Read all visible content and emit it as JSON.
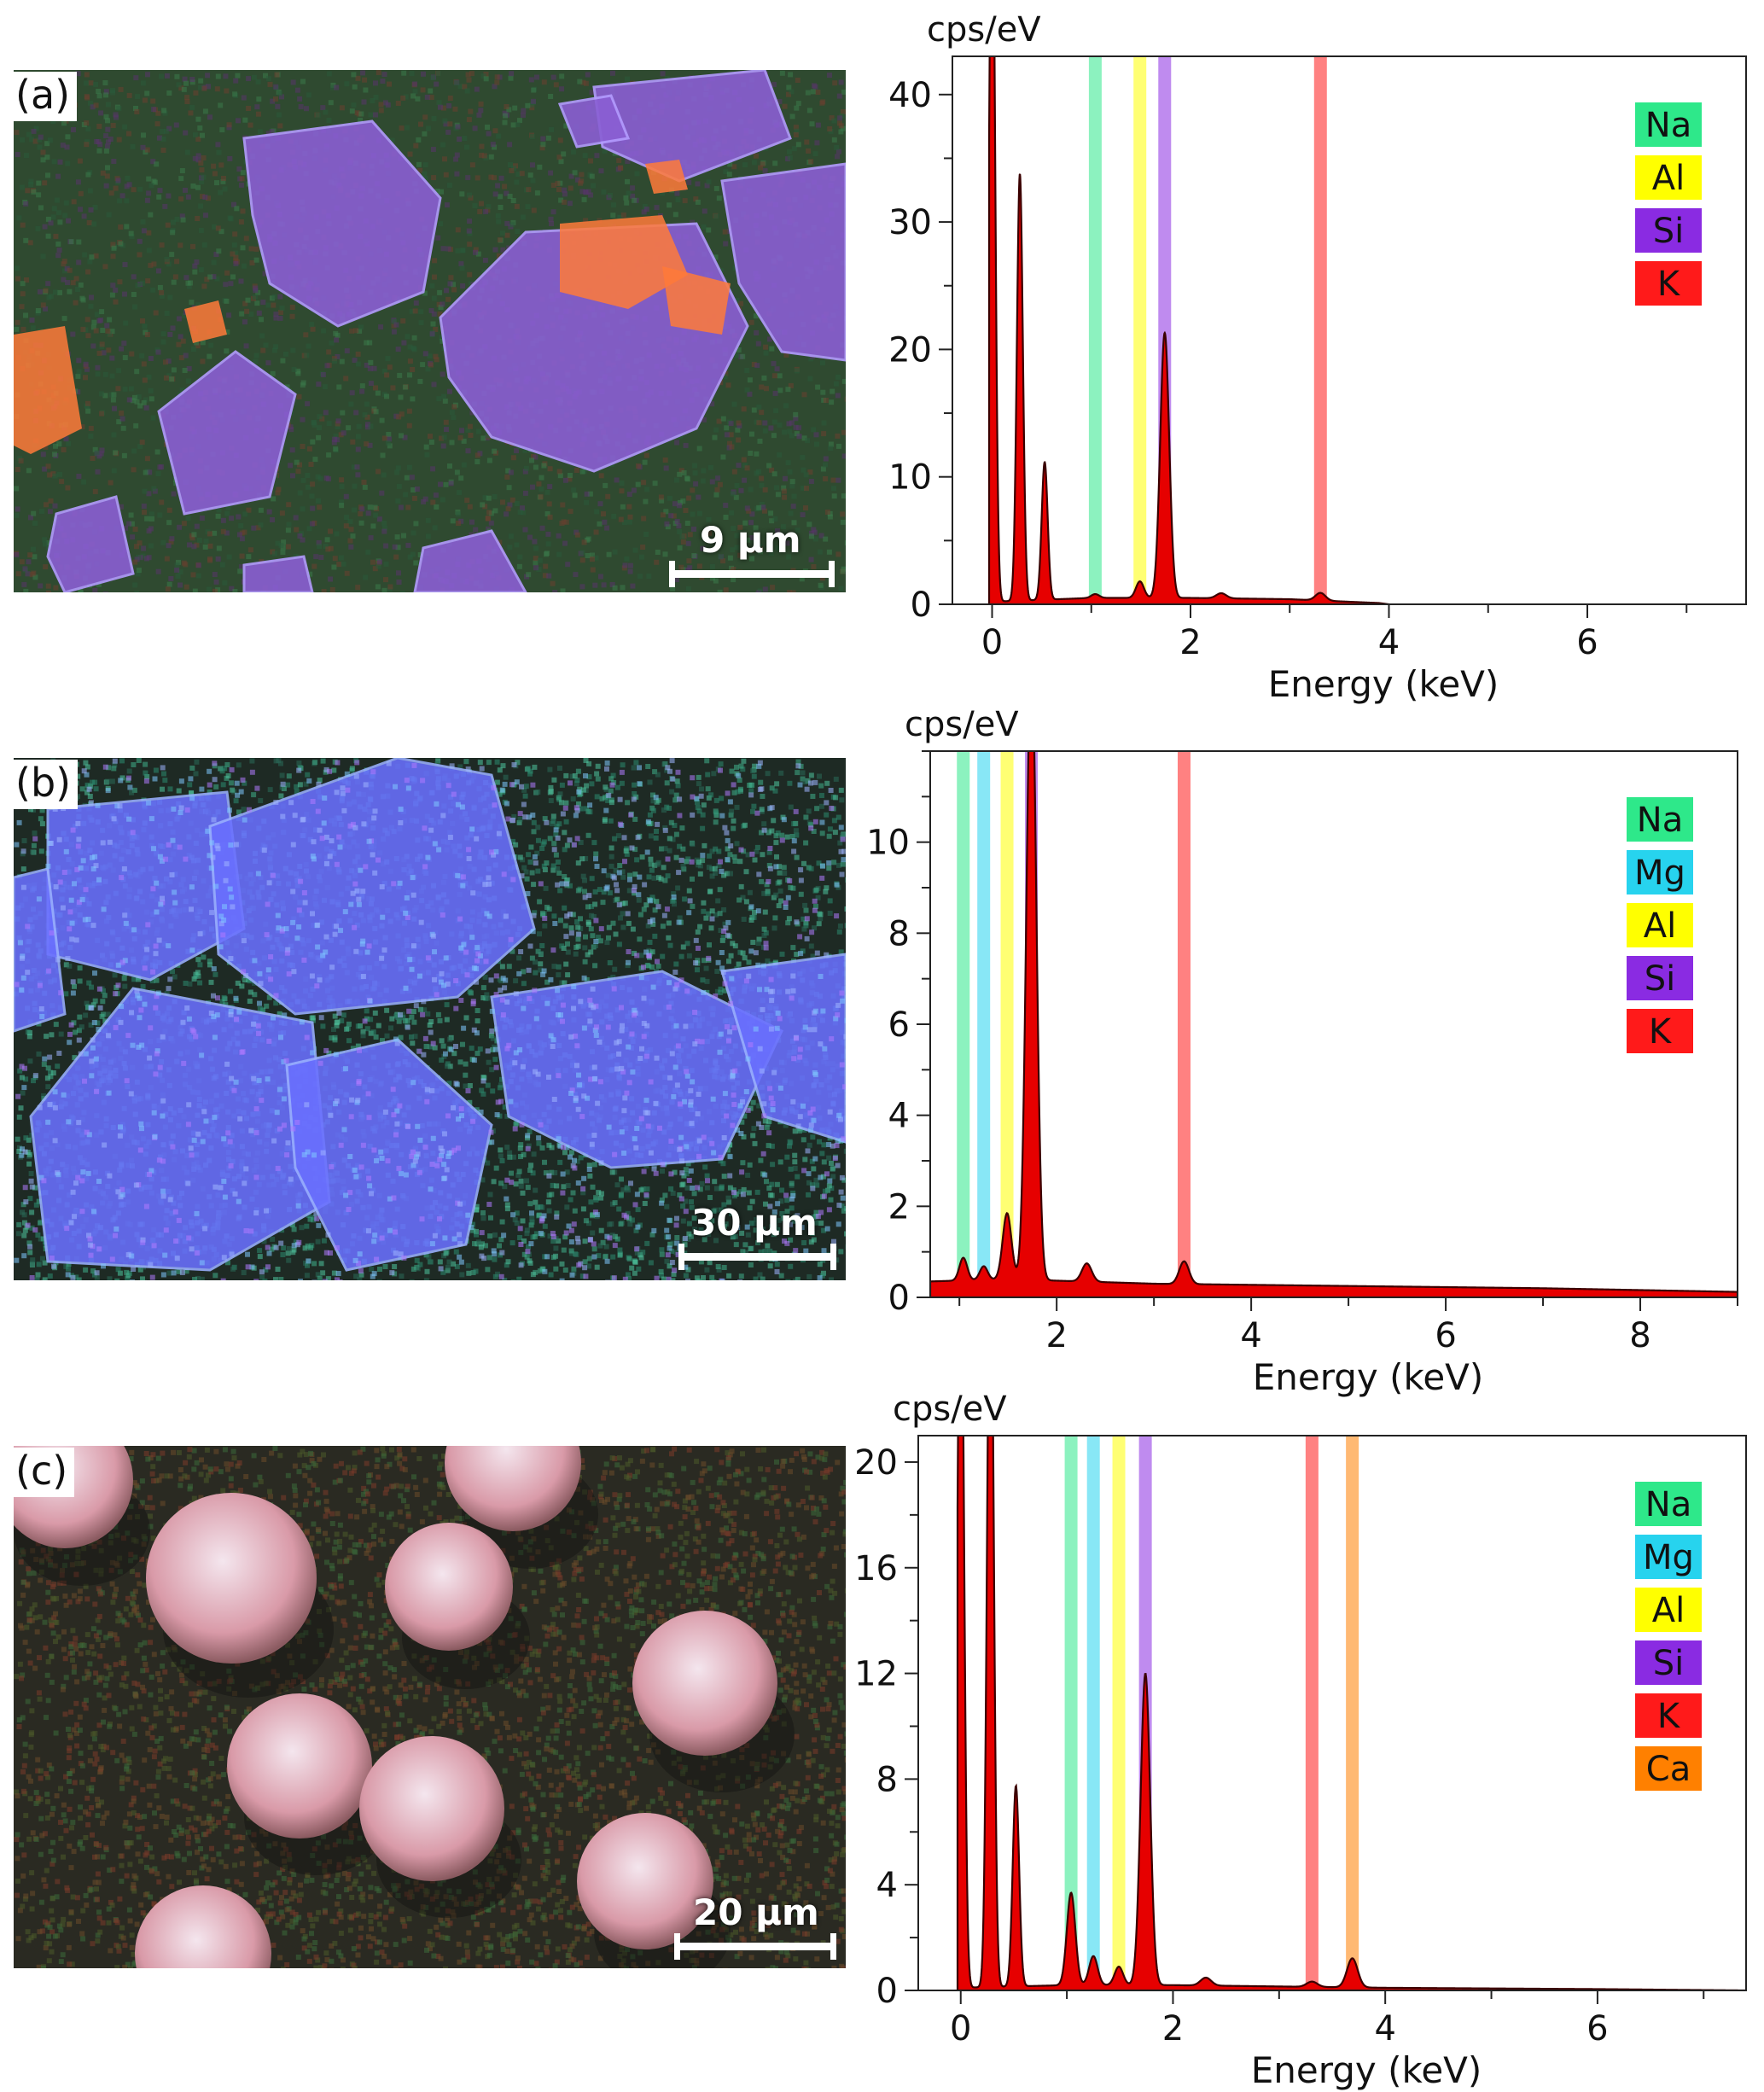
{
  "colors": {
    "Na": "#2ee88a",
    "Mg": "#27d3ee",
    "Al": "#ffff00",
    "Si": "#8a2be2",
    "K": "#ff1a1a",
    "Ca": "#ff8000",
    "spectrum_fill": "#e60000",
    "spectrum_line": "#3a0000"
  },
  "panels": [
    {
      "label": "(a)",
      "scale_bar": "9 µm",
      "image_theme": "irregular-flakes",
      "chart_unit": "cps/eV"
    },
    {
      "label": "(b)",
      "scale_bar": "30 µm",
      "image_theme": "angular-blocks",
      "chart_unit": "cps/eV"
    },
    {
      "label": "(c)",
      "scale_bar": "20 µm",
      "image_theme": "spheres",
      "chart_unit": "cps/eV"
    }
  ],
  "chart_data": [
    {
      "type": "area",
      "title": "",
      "xlabel": "Energy (keV)",
      "ylabel": "cps/eV",
      "xlim": [
        -0.4,
        7.6
      ],
      "ylim": [
        0,
        43
      ],
      "xticks": [
        0,
        2,
        4,
        6
      ],
      "yticks": [
        0,
        10,
        20,
        30,
        40
      ],
      "grid": false,
      "legend_position": "top-right",
      "legend": [
        "Na",
        "Al",
        "Si",
        "K"
      ],
      "element_lines": [
        {
          "element": "Na",
          "energy": 1.04
        },
        {
          "element": "Al",
          "energy": 1.49
        },
        {
          "element": "Si",
          "energy": 1.74
        },
        {
          "element": "K",
          "energy": 3.31
        }
      ],
      "peaks": [
        {
          "x": 0.0,
          "y": 60,
          "w": 0.03
        },
        {
          "x": 0.28,
          "y": 33.5,
          "w": 0.03
        },
        {
          "x": 0.53,
          "y": 10.8,
          "w": 0.03
        },
        {
          "x": 1.04,
          "y": 0.3,
          "w": 0.04
        },
        {
          "x": 1.49,
          "y": 1.3,
          "w": 0.04
        },
        {
          "x": 1.74,
          "y": 20.8,
          "w": 0.045
        },
        {
          "x": 2.31,
          "y": 0.4,
          "w": 0.05
        },
        {
          "x": 3.31,
          "y": 0.6,
          "w": 0.05
        }
      ],
      "baseline": [
        [
          0.0,
          0.2
        ],
        [
          1.0,
          0.5
        ],
        [
          2.0,
          0.5
        ],
        [
          3.0,
          0.4
        ],
        [
          3.9,
          0.1
        ],
        [
          4.0,
          0.0
        ]
      ]
    },
    {
      "type": "area",
      "title": "",
      "xlabel": "Energy (keV)",
      "ylabel": "cps/eV",
      "xlim": [
        0.7,
        9.0
      ],
      "ylim": [
        0,
        12
      ],
      "xticks": [
        2,
        4,
        6,
        8
      ],
      "yticks": [
        0,
        2,
        4,
        6,
        8,
        10
      ],
      "grid": false,
      "legend_position": "top-right",
      "legend": [
        "Na",
        "Mg",
        "Al",
        "Si",
        "K"
      ],
      "element_lines": [
        {
          "element": "Na",
          "energy": 1.04
        },
        {
          "element": "Mg",
          "energy": 1.25
        },
        {
          "element": "Al",
          "energy": 1.49
        },
        {
          "element": "Si",
          "energy": 1.74
        },
        {
          "element": "K",
          "energy": 3.31
        }
      ],
      "peaks": [
        {
          "x": 1.04,
          "y": 0.5,
          "w": 0.04
        },
        {
          "x": 1.25,
          "y": 0.3,
          "w": 0.04
        },
        {
          "x": 1.49,
          "y": 1.45,
          "w": 0.045
        },
        {
          "x": 1.74,
          "y": 14,
          "w": 0.05
        },
        {
          "x": 2.31,
          "y": 0.4,
          "w": 0.05
        },
        {
          "x": 3.31,
          "y": 0.5,
          "w": 0.05
        }
      ],
      "baseline": [
        [
          0.7,
          0.35
        ],
        [
          1.5,
          0.4
        ],
        [
          3.0,
          0.3
        ],
        [
          5.0,
          0.25
        ],
        [
          7.0,
          0.2
        ],
        [
          9.0,
          0.12
        ]
      ]
    },
    {
      "type": "area",
      "title": "",
      "xlabel": "Energy (keV)",
      "ylabel": "cps/eV",
      "xlim": [
        -0.4,
        7.4
      ],
      "ylim": [
        0,
        21
      ],
      "xticks": [
        0,
        2,
        4,
        6
      ],
      "yticks": [
        0,
        4,
        8,
        12,
        16,
        20
      ],
      "grid": false,
      "legend_position": "top-right",
      "legend": [
        "Na",
        "Mg",
        "Al",
        "Si",
        "K",
        "Ca"
      ],
      "element_lines": [
        {
          "element": "Na",
          "energy": 1.04
        },
        {
          "element": "Mg",
          "energy": 1.25
        },
        {
          "element": "Al",
          "energy": 1.49
        },
        {
          "element": "Si",
          "energy": 1.74
        },
        {
          "element": "K",
          "energy": 3.31
        },
        {
          "element": "Ca",
          "energy": 3.69
        }
      ],
      "peaks": [
        {
          "x": 0.0,
          "y": 30,
          "w": 0.03
        },
        {
          "x": 0.28,
          "y": 30,
          "w": 0.03
        },
        {
          "x": 0.52,
          "y": 7.6,
          "w": 0.03
        },
        {
          "x": 1.04,
          "y": 3.5,
          "w": 0.04
        },
        {
          "x": 1.25,
          "y": 1.1,
          "w": 0.04
        },
        {
          "x": 1.49,
          "y": 0.7,
          "w": 0.04
        },
        {
          "x": 1.74,
          "y": 11.8,
          "w": 0.045
        },
        {
          "x": 2.31,
          "y": 0.3,
          "w": 0.05
        },
        {
          "x": 3.31,
          "y": 0.2,
          "w": 0.05
        },
        {
          "x": 3.69,
          "y": 1.1,
          "w": 0.05
        }
      ],
      "baseline": [
        [
          0.0,
          0.1
        ],
        [
          1.0,
          0.2
        ],
        [
          2.0,
          0.2
        ],
        [
          3.0,
          0.15
        ],
        [
          4.0,
          0.1
        ],
        [
          6.0,
          0.05
        ],
        [
          7.4,
          0.0
        ]
      ]
    }
  ]
}
